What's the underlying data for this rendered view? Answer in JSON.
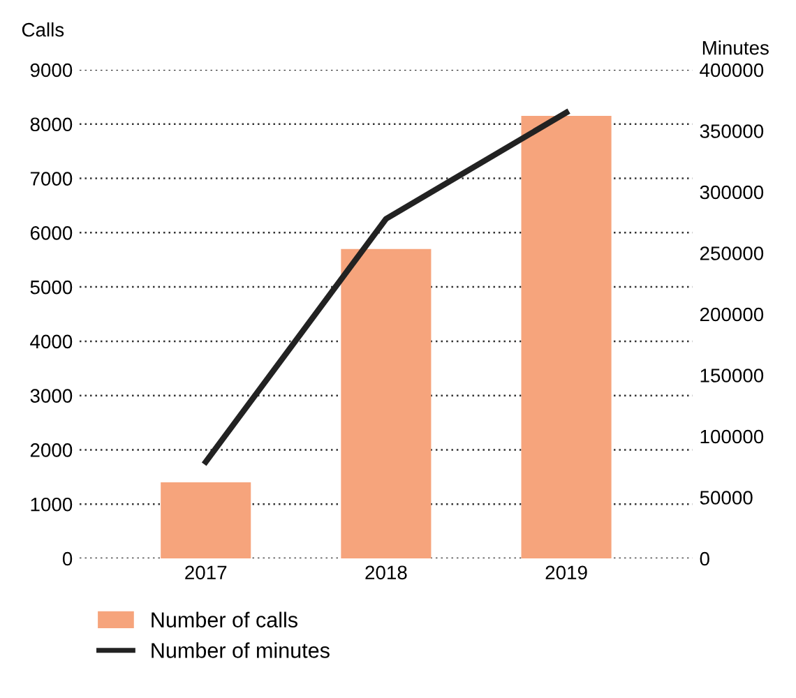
{
  "chart_data": {
    "type": "bar",
    "ylabel": "Calls",
    "y2label": "Minutes",
    "categories": [
      "2017",
      "2018",
      "2019"
    ],
    "series": [
      {
        "name": "Number of calls",
        "color": "#f6a47c",
        "values": [
          1400,
          5700,
          8150
        ]
      },
      {
        "name": "Number of minutes",
        "type": "line",
        "axis": "y2",
        "color": "#222222",
        "values": [
          79000,
          278000,
          365000
        ]
      }
    ],
    "ylim": [
      0,
      9000
    ],
    "yticks": [
      0,
      1000,
      2000,
      3000,
      4000,
      5000,
      6000,
      7000,
      8000,
      9000
    ],
    "y2lim": [
      0,
      400000
    ],
    "y2ticks": [
      0,
      50000,
      100000,
      150000,
      200000,
      250000,
      300000,
      350000,
      400000
    ],
    "grid": "y",
    "legend": "bottom",
    "marker": "none",
    "line_style": "solid"
  }
}
